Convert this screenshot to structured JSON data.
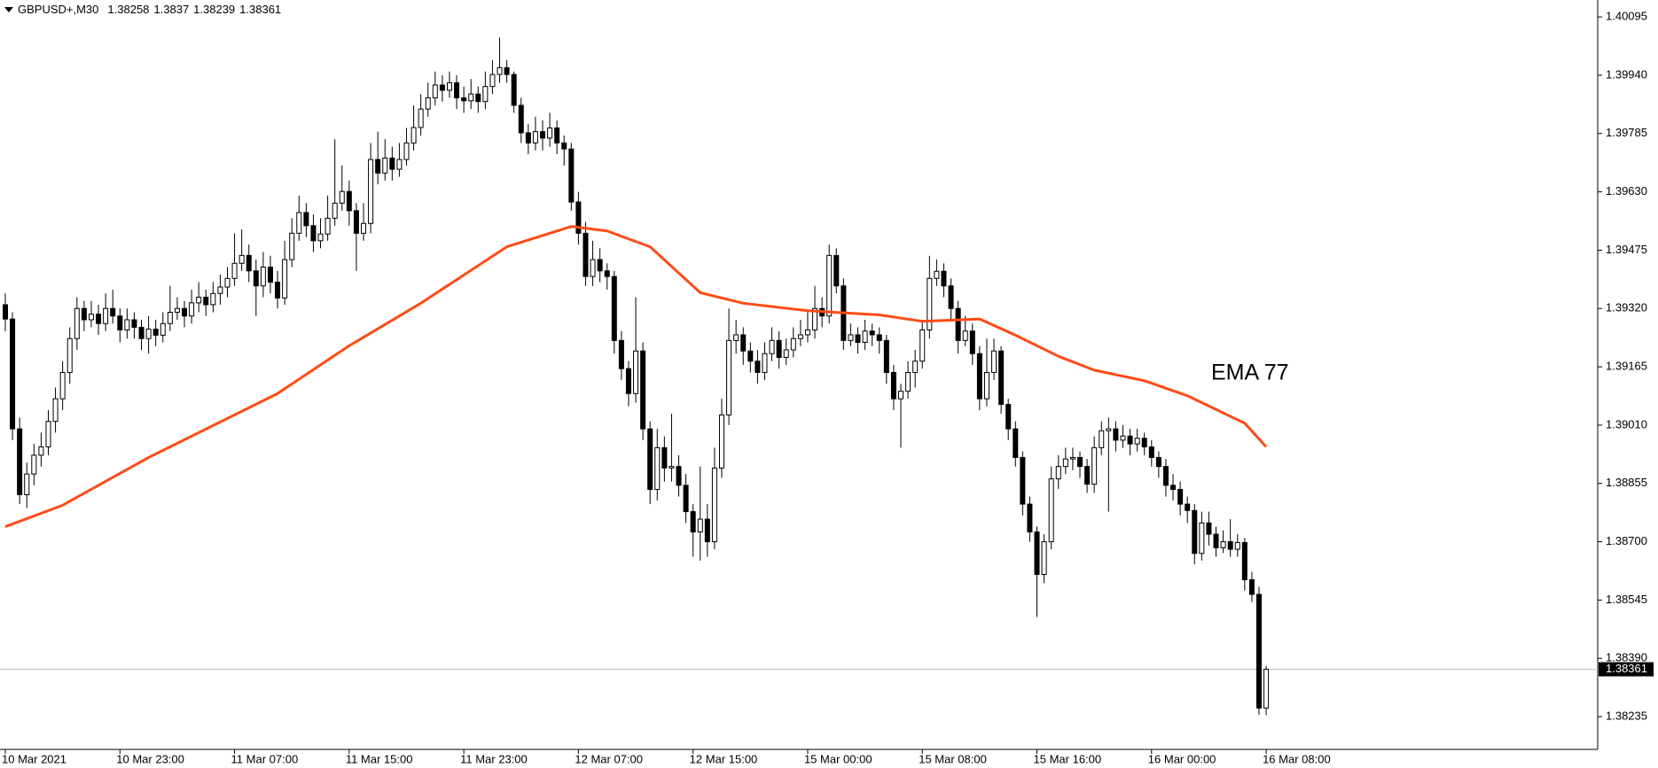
{
  "chart_data": {
    "type": "candlestick",
    "symbol": "GBPUSD+,M30",
    "ylim": [
      1.38148,
      1.4014
    ],
    "yticks": [
      1.40095,
      {
        "value": 1.3994,
        "label": "1.39940"
      },
      1.39785,
      {
        "value": 1.3963,
        "label": "1.39630"
      },
      1.39475,
      {
        "value": 1.3932,
        "label": "1.39320"
      },
      1.39165,
      {
        "value": 1.3901,
        "label": "1.39010"
      },
      1.38855,
      {
        "value": 1.387,
        "label": "1.38700"
      },
      1.38545,
      {
        "value": 1.3839,
        "label": "1.38390"
      },
      1.38235
    ],
    "up_color": "#ffffff",
    "down_color": "#000000",
    "grid": false,
    "categories": [
      "10 Mar 2021",
      null,
      null,
      null,
      null,
      null,
      null,
      null,
      null,
      null,
      null,
      null,
      null,
      null,
      null,
      null,
      "10 Mar 23:00",
      null,
      null,
      null,
      null,
      null,
      null,
      null,
      null,
      null,
      null,
      null,
      null,
      null,
      null,
      null,
      "11 Mar 07:00",
      null,
      null,
      null,
      null,
      null,
      null,
      null,
      null,
      null,
      null,
      null,
      null,
      null,
      null,
      null,
      "11 Mar 15:00",
      null,
      null,
      null,
      null,
      null,
      null,
      null,
      null,
      null,
      null,
      null,
      null,
      null,
      null,
      null,
      "11 Mar 23:00",
      null,
      null,
      null,
      null,
      null,
      null,
      null,
      null,
      null,
      null,
      null,
      null,
      null,
      null,
      null,
      "12 Mar 07:00",
      null,
      null,
      null,
      null,
      null,
      null,
      null,
      null,
      null,
      null,
      null,
      null,
      null,
      null,
      null,
      "12 Mar 15:00",
      null,
      null,
      null,
      null,
      null,
      null,
      null,
      null,
      null,
      null,
      null,
      null,
      null,
      null,
      null,
      "15 Mar 00:00",
      null,
      null,
      null,
      null,
      null,
      null,
      null,
      null,
      null,
      null,
      null,
      null,
      null,
      null,
      null,
      "15 Mar 08:00",
      null,
      null,
      null,
      null,
      null,
      null,
      null,
      null,
      null,
      null,
      null,
      null,
      null,
      null,
      null,
      "15 Mar 16:00",
      null,
      null,
      null,
      null,
      null,
      null,
      null,
      null,
      null,
      null,
      null,
      null,
      null,
      null,
      null,
      "16 Mar 00:00",
      null,
      null,
      null,
      null,
      null,
      null,
      null,
      null,
      null,
      null,
      null,
      null,
      null,
      null,
      null,
      "16 Mar 08:00"
    ],
    "ohlc": [
      [
        1.3933,
        1.3936,
        1.3926,
        1.39292
      ],
      [
        1.39292,
        1.3931,
        1.3897,
        1.39
      ],
      [
        1.39,
        1.3903,
        1.388,
        1.38825
      ],
      [
        1.38825,
        1.3891,
        1.3879,
        1.3888
      ],
      [
        1.3888,
        1.3896,
        1.3885,
        1.3893
      ],
      [
        1.3893,
        1.3899,
        1.389,
        1.38952
      ],
      [
        1.38952,
        1.3905,
        1.3893,
        1.3902
      ],
      [
        1.3902,
        1.3911,
        1.3899,
        1.3908
      ],
      [
        1.3908,
        1.3918,
        1.3905,
        1.3915
      ],
      [
        1.3915,
        1.3927,
        1.3912,
        1.3924
      ],
      [
        1.3924,
        1.3935,
        1.3921,
        1.3932
      ],
      [
        1.3932,
        1.3934,
        1.3926,
        1.3929
      ],
      [
        1.3929,
        1.3934,
        1.3927,
        1.39305
      ],
      [
        1.39305,
        1.3933,
        1.3925,
        1.3928
      ],
      [
        1.3928,
        1.3936,
        1.3926,
        1.3932
      ],
      [
        1.3932,
        1.3937,
        1.3928,
        1.393
      ],
      [
        1.393,
        1.3932,
        1.3923,
        1.39263
      ],
      [
        1.39263,
        1.3932,
        1.3924,
        1.3929
      ],
      [
        1.3929,
        1.3931,
        1.3924,
        1.3927
      ],
      [
        1.3927,
        1.3929,
        1.3921,
        1.3924
      ],
      [
        1.3924,
        1.393,
        1.392,
        1.39265
      ],
      [
        1.39265,
        1.3929,
        1.3922,
        1.39249
      ],
      [
        1.39249,
        1.3931,
        1.3923,
        1.3928
      ],
      [
        1.3928,
        1.3938,
        1.3926,
        1.3931
      ],
      [
        1.3931,
        1.3935,
        1.3929,
        1.3932
      ],
      [
        1.3932,
        1.3934,
        1.3927,
        1.393
      ],
      [
        1.393,
        1.3937,
        1.3928,
        1.39335
      ],
      [
        1.39335,
        1.3939,
        1.3931,
        1.3935
      ],
      [
        1.3935,
        1.3937,
        1.393,
        1.3933
      ],
      [
        1.3933,
        1.3939,
        1.3931,
        1.3936
      ],
      [
        1.3936,
        1.3941,
        1.3933,
        1.39377
      ],
      [
        1.39377,
        1.3943,
        1.3935,
        1.394
      ],
      [
        1.394,
        1.3952,
        1.3938,
        1.3944
      ],
      [
        1.3944,
        1.3953,
        1.3942,
        1.39461
      ],
      [
        1.39461,
        1.3949,
        1.3939,
        1.3942
      ],
      [
        1.3942,
        1.3945,
        1.393,
        1.3938
      ],
      [
        1.3938,
        1.3947,
        1.3935,
        1.3943
      ],
      [
        1.3943,
        1.3946,
        1.3936,
        1.3939
      ],
      [
        1.3939,
        1.3942,
        1.3932,
        1.39348
      ],
      [
        1.39348,
        1.395,
        1.3933,
        1.3945
      ],
      [
        1.3945,
        1.3956,
        1.3943,
        1.3952
      ],
      [
        1.3952,
        1.3962,
        1.395,
        1.39575
      ],
      [
        1.39575,
        1.396,
        1.3951,
        1.3954
      ],
      [
        1.3954,
        1.3957,
        1.3947,
        1.395
      ],
      [
        1.395,
        1.3956,
        1.3948,
        1.39518
      ],
      [
        1.39518,
        1.3962,
        1.395,
        1.3956
      ],
      [
        1.3956,
        1.3977,
        1.3954,
        1.396
      ],
      [
        1.396,
        1.397,
        1.3958,
        1.39631
      ],
      [
        1.39631,
        1.3966,
        1.3954,
        1.3958
      ],
      [
        1.3958,
        1.396,
        1.3942,
        1.3952
      ],
      [
        1.3952,
        1.396,
        1.395,
        1.39546
      ],
      [
        1.39546,
        1.3976,
        1.3952,
        1.39716
      ],
      [
        1.39716,
        1.3979,
        1.3965,
        1.3968
      ],
      [
        1.3968,
        1.3977,
        1.3966,
        1.3972
      ],
      [
        1.3972,
        1.3975,
        1.3966,
        1.3969
      ],
      [
        1.3969,
        1.3976,
        1.3967,
        1.39716
      ],
      [
        1.39716,
        1.398,
        1.397,
        1.3976
      ],
      [
        1.3976,
        1.3986,
        1.3974,
        1.39801
      ],
      [
        1.39801,
        1.3989,
        1.3978,
        1.3985
      ],
      [
        1.3985,
        1.3992,
        1.3983,
        1.3988
      ],
      [
        1.3988,
        1.3995,
        1.3986,
        1.39914
      ],
      [
        1.39914,
        1.3994,
        1.3987,
        1.399
      ],
      [
        1.399,
        1.3995,
        1.3988,
        1.3992
      ],
      [
        1.3992,
        1.3994,
        1.3985,
        1.3988
      ],
      [
        1.3988,
        1.3991,
        1.3984,
        1.39872
      ],
      [
        1.39872,
        1.3993,
        1.3985,
        1.3989
      ],
      [
        1.3989,
        1.3991,
        1.3984,
        1.3987
      ],
      [
        1.3987,
        1.3995,
        1.3985,
        1.3991
      ],
      [
        1.3991,
        1.3998,
        1.3989,
        1.39942
      ],
      [
        1.39942,
        1.4004,
        1.3992,
        1.3996
      ],
      [
        1.3996,
        1.3998,
        1.3992,
        1.39942
      ],
      [
        1.39942,
        1.3995,
        1.3984,
        1.3986
      ],
      [
        1.3986,
        1.3988,
        1.3976,
        1.39787
      ],
      [
        1.39787,
        1.3981,
        1.3973,
        1.3976
      ],
      [
        1.3976,
        1.3983,
        1.3974,
        1.3979
      ],
      [
        1.3979,
        1.3982,
        1.3974,
        1.39773
      ],
      [
        1.39773,
        1.3984,
        1.3975,
        1.398
      ],
      [
        1.398,
        1.3982,
        1.3973,
        1.3976
      ],
      [
        1.3976,
        1.3978,
        1.397,
        1.39744
      ],
      [
        1.39744,
        1.3976,
        1.3958,
        1.39603
      ],
      [
        1.39603,
        1.3963,
        1.3949,
        1.3952
      ],
      [
        1.3952,
        1.3955,
        1.3938,
        1.39405
      ],
      [
        1.39405,
        1.395,
        1.3938,
        1.3945
      ],
      [
        1.3945,
        1.3948,
        1.3939,
        1.3942
      ],
      [
        1.3942,
        1.3944,
        1.3937,
        1.39405
      ],
      [
        1.39405,
        1.3942,
        1.392,
        1.39235
      ],
      [
        1.39235,
        1.3926,
        1.3913,
        1.3916
      ],
      [
        1.3916,
        1.3918,
        1.3906,
        1.39094
      ],
      [
        1.39094,
        1.3935,
        1.3907,
        1.39207
      ],
      [
        1.39207,
        1.3923,
        1.3897,
        1.39
      ],
      [
        1.39,
        1.3902,
        1.388,
        1.38839
      ],
      [
        1.38839,
        1.39,
        1.3881,
        1.3895
      ],
      [
        1.3895,
        1.3898,
        1.3886,
        1.38896
      ],
      [
        1.38896,
        1.3904,
        1.3886,
        1.389
      ],
      [
        1.389,
        1.3893,
        1.3882,
        1.3885
      ],
      [
        1.3885,
        1.3888,
        1.3875,
        1.3878
      ],
      [
        1.3878,
        1.388,
        1.3866,
        1.38726
      ],
      [
        1.38726,
        1.389,
        1.3865,
        1.3876
      ],
      [
        1.3876,
        1.388,
        1.3866,
        1.387
      ],
      [
        1.387,
        1.3895,
        1.3868,
        1.38896
      ],
      [
        1.38896,
        1.3908,
        1.3887,
        1.39037
      ],
      [
        1.39037,
        1.3932,
        1.3901,
        1.39235
      ],
      [
        1.39235,
        1.3929,
        1.392,
        1.3925
      ],
      [
        1.3925,
        1.3927,
        1.3917,
        1.39207
      ],
      [
        1.39207,
        1.3923,
        1.3915,
        1.3918
      ],
      [
        1.3918,
        1.3921,
        1.3912,
        1.3915
      ],
      [
        1.3915,
        1.3923,
        1.3913,
        1.392
      ],
      [
        1.392,
        1.3927,
        1.3918,
        1.39235
      ],
      [
        1.39235,
        1.3926,
        1.3916,
        1.3919
      ],
      [
        1.3919,
        1.3924,
        1.3917,
        1.3921
      ],
      [
        1.3921,
        1.3927,
        1.3919,
        1.3924
      ],
      [
        1.3924,
        1.3929,
        1.3922,
        1.3925
      ],
      [
        1.3925,
        1.3931,
        1.3923,
        1.39263
      ],
      [
        1.39263,
        1.3938,
        1.3924,
        1.3932
      ],
      [
        1.3932,
        1.3935,
        1.3927,
        1.393
      ],
      [
        1.393,
        1.3949,
        1.3928,
        1.39461
      ],
      [
        1.39461,
        1.3948,
        1.3936,
        1.3938
      ],
      [
        1.3938,
        1.394,
        1.3921,
        1.39235
      ],
      [
        1.39235,
        1.3928,
        1.3922,
        1.3925
      ],
      [
        1.3925,
        1.3927,
        1.392,
        1.3923
      ],
      [
        1.3923,
        1.3929,
        1.3921,
        1.3926
      ],
      [
        1.3926,
        1.3928,
        1.3922,
        1.3925
      ],
      [
        1.3925,
        1.3927,
        1.392,
        1.39235
      ],
      [
        1.39235,
        1.3925,
        1.3912,
        1.3915
      ],
      [
        1.3915,
        1.3917,
        1.3905,
        1.3908
      ],
      [
        1.3908,
        1.3912,
        1.3895,
        1.391
      ],
      [
        1.391,
        1.3918,
        1.3908,
        1.3915
      ],
      [
        1.3915,
        1.3921,
        1.3911,
        1.3918
      ],
      [
        1.3918,
        1.3929,
        1.3916,
        1.39263
      ],
      [
        1.39263,
        1.3946,
        1.3924,
        1.394
      ],
      [
        1.394,
        1.3945,
        1.3938,
        1.39419
      ],
      [
        1.39419,
        1.3944,
        1.3935,
        1.3938
      ],
      [
        1.3938,
        1.394,
        1.3929,
        1.3932
      ],
      [
        1.3932,
        1.3934,
        1.392,
        1.39235
      ],
      [
        1.39235,
        1.393,
        1.3922,
        1.3926
      ],
      [
        1.3926,
        1.3928,
        1.3917,
        1.392
      ],
      [
        1.392,
        1.3922,
        1.3905,
        1.3908
      ],
      [
        1.3908,
        1.3924,
        1.3906,
        1.3915
      ],
      [
        1.3915,
        1.3924,
        1.3913,
        1.39207
      ],
      [
        1.39207,
        1.3922,
        1.3904,
        1.39065
      ],
      [
        1.39065,
        1.3908,
        1.3897,
        1.39
      ],
      [
        1.39,
        1.3902,
        1.389,
        1.38924
      ],
      [
        1.38924,
        1.3894,
        1.3877,
        1.388
      ],
      [
        1.388,
        1.3882,
        1.387,
        1.38726
      ],
      [
        1.38726,
        1.3874,
        1.385,
        1.38613
      ],
      [
        1.38613,
        1.3872,
        1.3859,
        1.387
      ],
      [
        1.387,
        1.389,
        1.3868,
        1.38867
      ],
      [
        1.38867,
        1.3893,
        1.3884,
        1.389
      ],
      [
        1.389,
        1.3895,
        1.3888,
        1.3892
      ],
      [
        1.3892,
        1.3895,
        1.3889,
        1.38924
      ],
      [
        1.38924,
        1.3894,
        1.3887,
        1.389
      ],
      [
        1.389,
        1.3892,
        1.3883,
        1.38853
      ],
      [
        1.38853,
        1.3898,
        1.3883,
        1.3895
      ],
      [
        1.3895,
        1.3902,
        1.3893,
        1.38995
      ],
      [
        1.38995,
        1.3903,
        1.3878,
        1.39
      ],
      [
        1.39,
        1.3902,
        1.3894,
        1.3897
      ],
      [
        1.3897,
        1.3901,
        1.3895,
        1.38981
      ],
      [
        1.38981,
        1.39,
        1.3893,
        1.3896
      ],
      [
        1.3896,
        1.39,
        1.3894,
        1.38975
      ],
      [
        1.38975,
        1.3899,
        1.3893,
        1.38952
      ],
      [
        1.38952,
        1.3897,
        1.389,
        1.38924
      ],
      [
        1.38924,
        1.3894,
        1.3887,
        1.389
      ],
      [
        1.389,
        1.3892,
        1.3882,
        1.3885
      ],
      [
        1.3885,
        1.3888,
        1.3881,
        1.38839
      ],
      [
        1.38839,
        1.3886,
        1.3877,
        1.388
      ],
      [
        1.388,
        1.3882,
        1.3875,
        1.38783
      ],
      [
        1.38783,
        1.388,
        1.3864,
        1.38669
      ],
      [
        1.38669,
        1.3878,
        1.3865,
        1.3875
      ],
      [
        1.3875,
        1.3878,
        1.3869,
        1.3872
      ],
      [
        1.3872,
        1.3874,
        1.3866,
        1.38684
      ],
      [
        1.38684,
        1.3873,
        1.3867,
        1.387
      ],
      [
        1.387,
        1.3876,
        1.3866,
        1.3868
      ],
      [
        1.3868,
        1.3872,
        1.3866,
        1.38698
      ],
      [
        1.38698,
        1.3871,
        1.3857,
        1.38599
      ],
      [
        1.38599,
        1.3862,
        1.3854,
        1.3856
      ],
      [
        1.3856,
        1.3858,
        1.3824,
        1.38258
      ],
      [
        1.38258,
        1.3837,
        1.38239,
        1.38361
      ]
    ],
    "ema": {
      "name": "EMA 77",
      "color": "#ff4b16",
      "label_color": "#e8261e",
      "x": [
        0,
        8,
        20,
        38,
        48,
        58,
        70,
        79,
        84,
        90,
        97,
        103,
        112,
        122,
        128,
        136,
        141,
        147,
        152,
        159,
        165,
        173,
        176
      ],
      "values": [
        1.3874,
        1.38797,
        1.38924,
        1.39094,
        1.39221,
        1.39334,
        1.39484,
        1.39538,
        1.39526,
        1.39484,
        1.39362,
        1.39334,
        1.39314,
        1.39303,
        1.39286,
        1.39292,
        1.39249,
        1.39193,
        1.39156,
        1.39128,
        1.39088,
        1.39015,
        1.38952
      ]
    }
  }
}
